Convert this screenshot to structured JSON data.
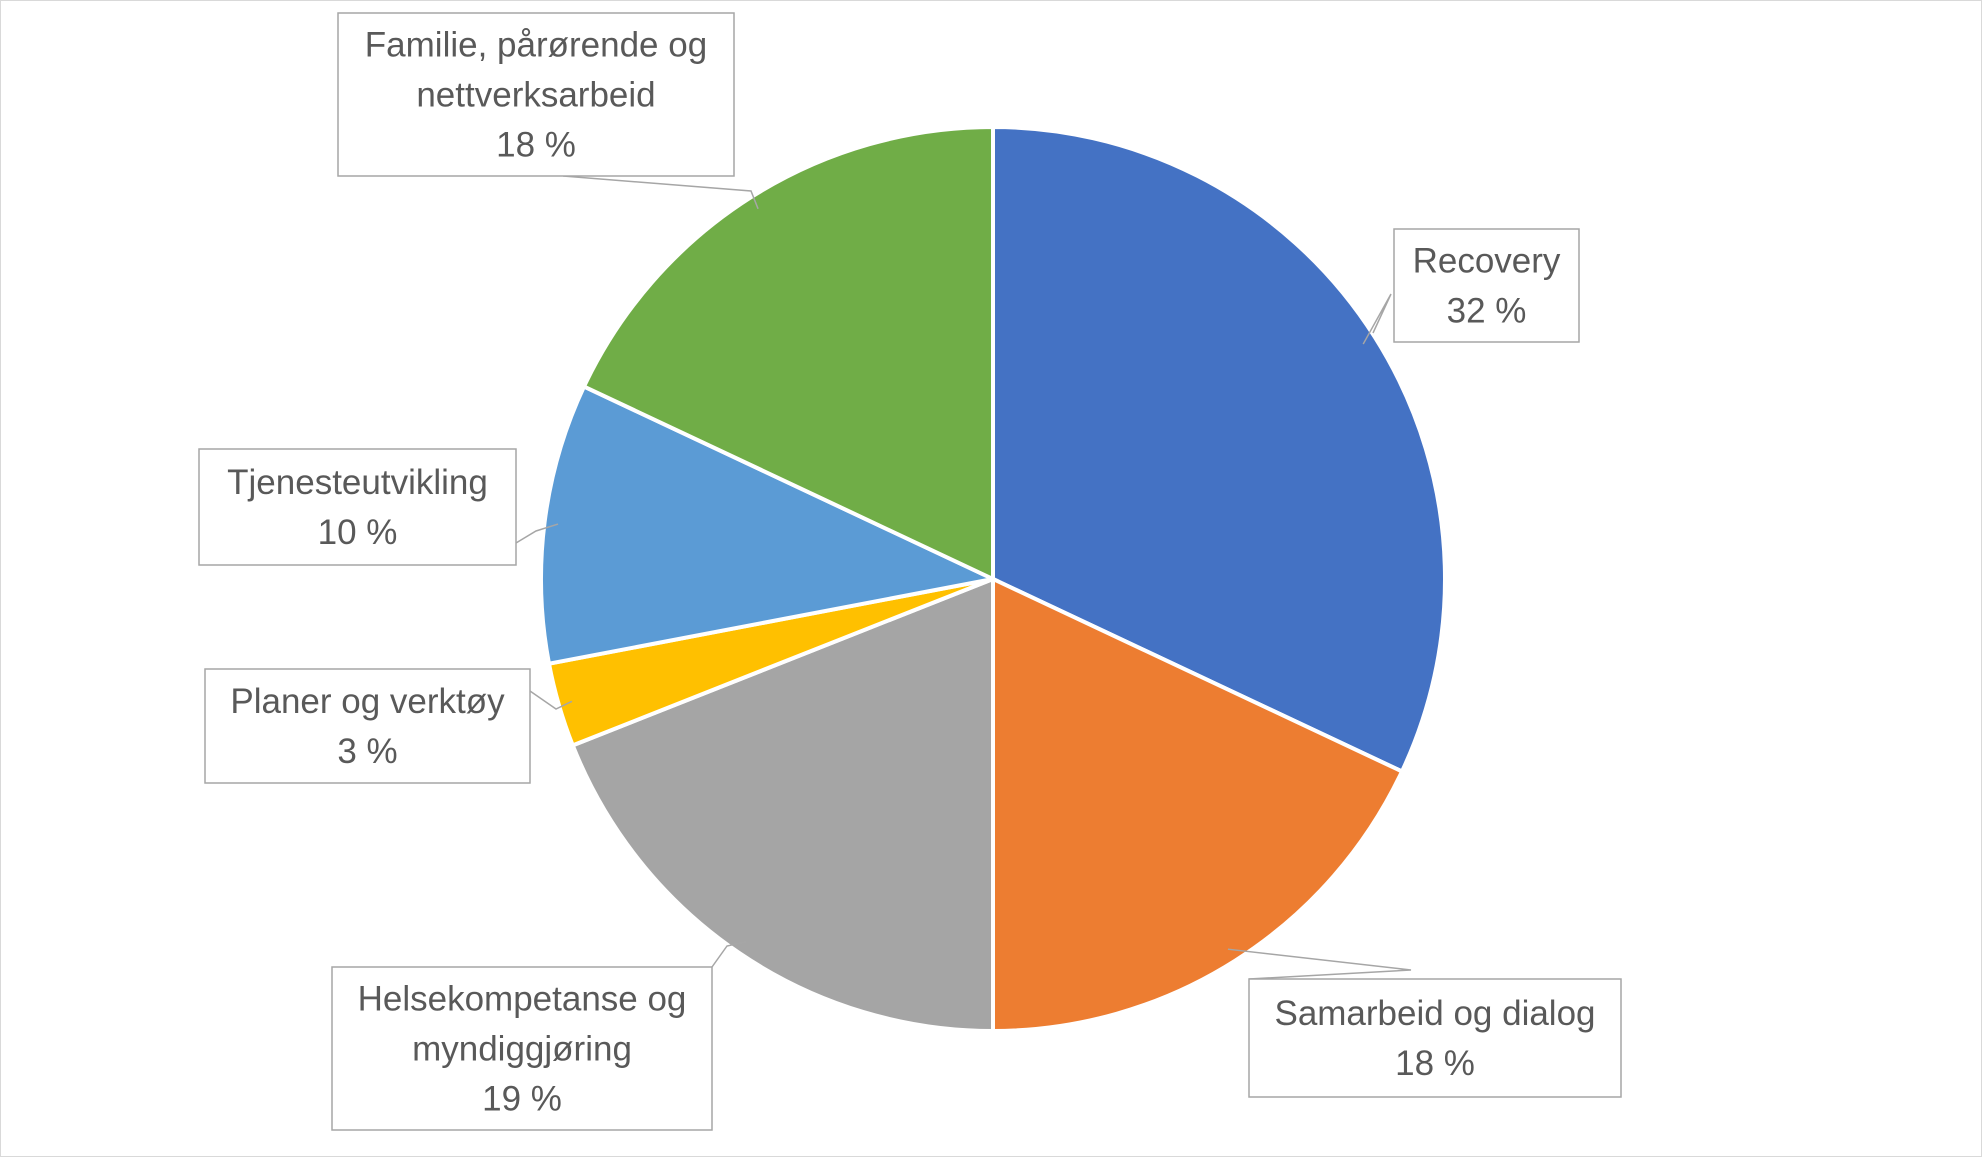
{
  "chart_data": {
    "type": "pie",
    "title": "",
    "slices": [
      {
        "label": [
          "Recovery"
        ],
        "value": 32,
        "value_label": "32 %",
        "color": "#4472C4"
      },
      {
        "label": [
          "Samarbeid og dialog"
        ],
        "value": 18,
        "value_label": "18 %",
        "color": "#ED7D31"
      },
      {
        "label": [
          "Helsekompetanse og",
          "myndiggjøring"
        ],
        "value": 19,
        "value_label": "19 %",
        "color": "#A5A5A5"
      },
      {
        "label": [
          "Planer og verktøy"
        ],
        "value": 3,
        "value_label": "3 %",
        "color": "#FFC000"
      },
      {
        "label": [
          "Tjenesteutvikling"
        ],
        "value": 10,
        "value_label": "10 %",
        "color": "#5B9BD5"
      },
      {
        "label": [
          "Familie, pårørende og",
          "nettverksarbeid"
        ],
        "value": 18,
        "value_label": "18 %",
        "color": "#70AD47"
      }
    ],
    "legend": "none",
    "data_labels": "callout"
  }
}
